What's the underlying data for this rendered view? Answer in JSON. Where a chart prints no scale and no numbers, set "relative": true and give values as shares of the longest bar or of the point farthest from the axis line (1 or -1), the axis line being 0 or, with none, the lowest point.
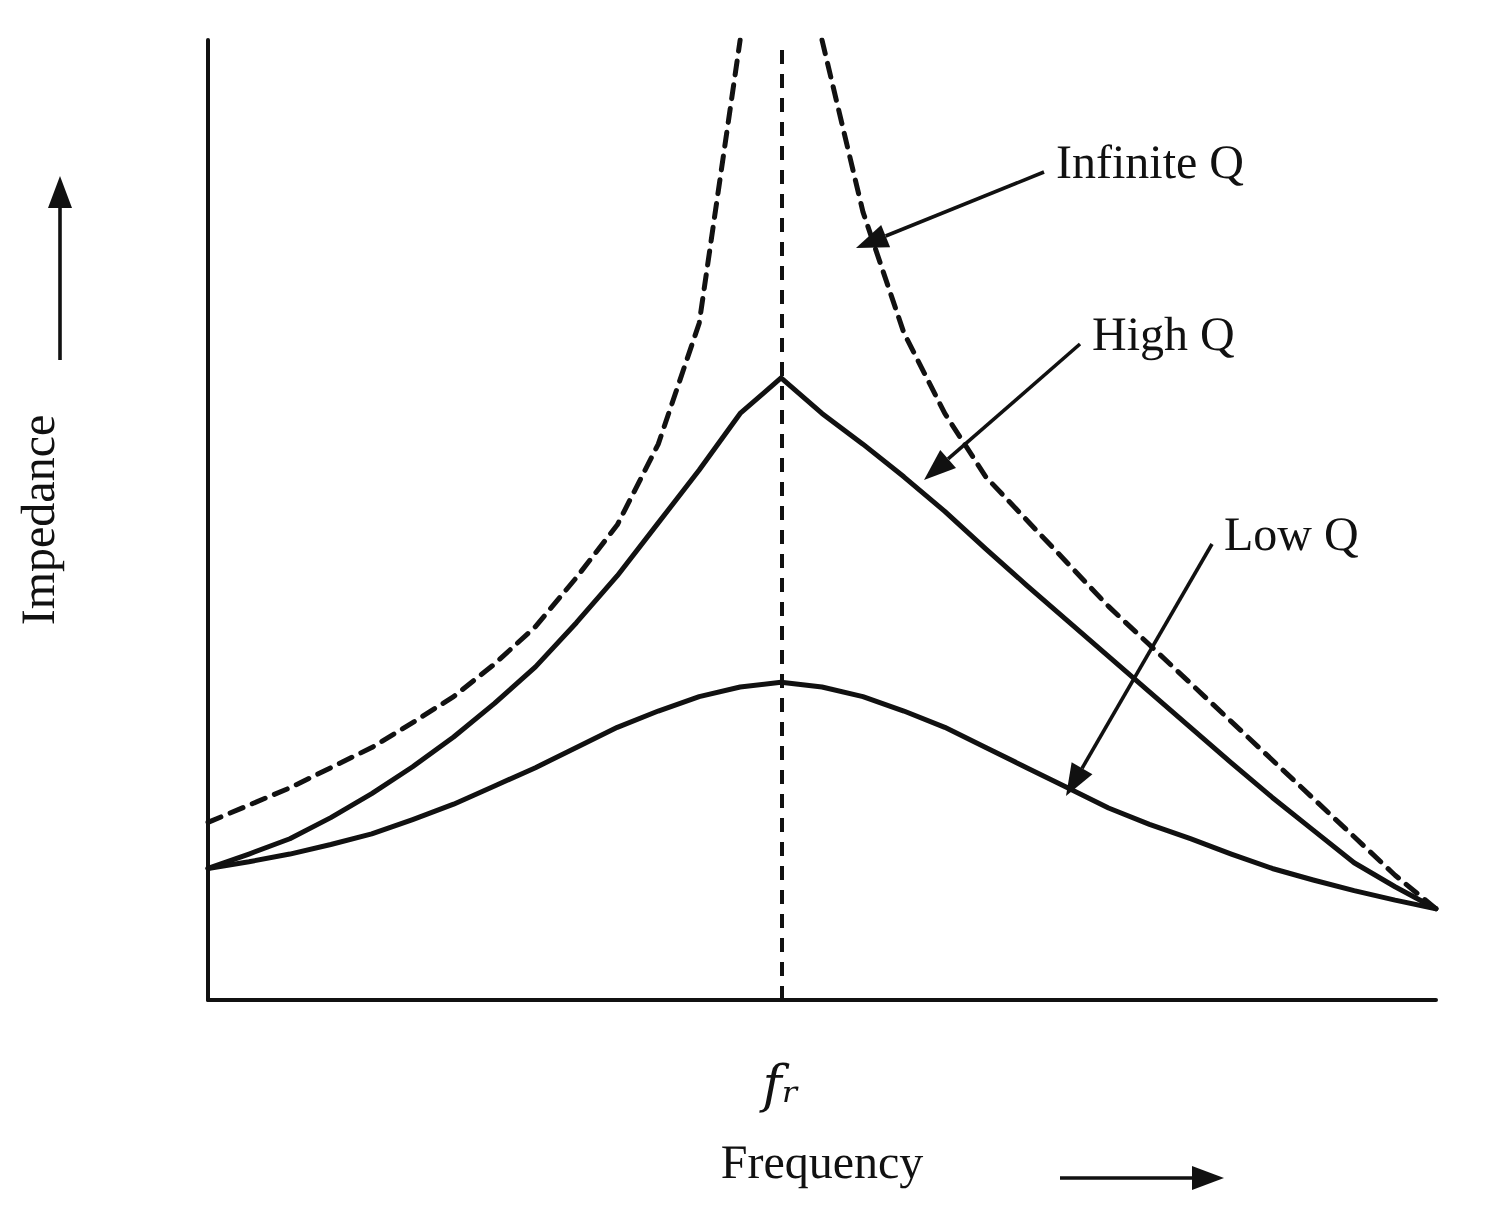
{
  "chart_data": {
    "type": "line",
    "relative": true,
    "xlabel": "Frequency",
    "ylabel": "Impedance",
    "categories": [
      null,
      null,
      null,
      null,
      null,
      null,
      null,
      null,
      null,
      null,
      null,
      null,
      null,
      null,
      null,
      null,
      null,
      null,
      null,
      null,
      null,
      null,
      null,
      null,
      null,
      null,
      null,
      null,
      null,
      null,
      null
    ],
    "series": [
      {
        "color": "#111111",
        "line_style": "dashed",
        "values": [
          0.185,
          0.203,
          0.221,
          0.242,
          0.263,
          0.289,
          0.316,
          0.35,
          0.389,
          0.44,
          0.495,
          0.579,
          0.705,
          1.0,
          null,
          null,
          null,
          null,
          null,
          null,
          null,
          null,
          null,
          null,
          null,
          null,
          null,
          null,
          null,
          null,
          null
        ]
      },
      {
        "color": "#111111",
        "line_style": "dashed",
        "values": [
          null,
          null,
          null,
          null,
          null,
          null,
          null,
          null,
          null,
          null,
          null,
          null,
          null,
          null,
          null,
          1.0,
          0.821,
          0.695,
          0.611,
          0.545,
          0.5,
          0.455,
          0.41,
          0.37,
          0.33,
          0.29,
          0.25,
          0.21,
          0.17,
          0.13,
          0.095
        ]
      },
      {
        "color": "#111111",
        "line_style": "solid",
        "values": [
          0.137,
          0.152,
          0.168,
          0.19,
          0.215,
          0.243,
          0.274,
          0.309,
          0.347,
          0.393,
          0.442,
          0.497,
          0.552,
          0.611,
          0.648,
          0.611,
          0.579,
          0.545,
          0.509,
          0.47,
          0.432,
          0.395,
          0.358,
          0.321,
          0.284,
          0.247,
          0.211,
          0.177,
          0.143,
          0.118,
          0.095
        ]
      },
      {
        "color": "#111111",
        "line_style": "solid",
        "values": [
          0.137,
          0.144,
          0.152,
          0.162,
          0.173,
          0.188,
          0.204,
          0.223,
          0.242,
          0.263,
          0.284,
          0.301,
          0.316,
          0.326,
          0.331,
          0.326,
          0.316,
          0.301,
          0.284,
          0.263,
          0.242,
          0.221,
          0.2,
          0.183,
          0.168,
          0.152,
          0.137,
          0.125,
          0.114,
          0.104,
          0.095
        ]
      }
    ],
    "ref_lines": [
      {
        "axis": "x",
        "label": "fᵣ",
        "line_style": "dashed",
        "color": "#111111"
      }
    ],
    "annotations": [
      "Infinite Q",
      "High Q",
      "Low Q"
    ],
    "grid": false,
    "marker": "none"
  }
}
